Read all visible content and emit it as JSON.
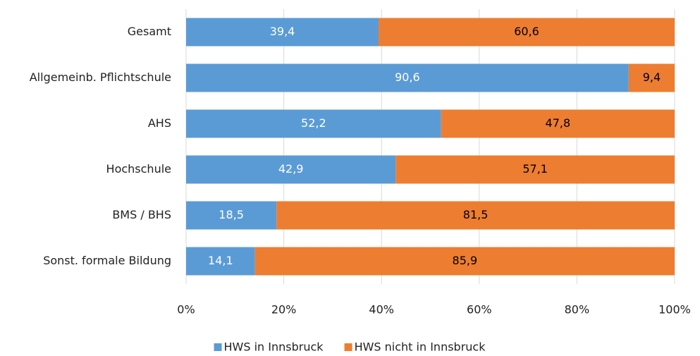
{
  "chart_data": {
    "type": "bar",
    "orientation": "horizontal",
    "stacked": true,
    "categories": [
      "Gesamt",
      "Allgemeinb. Pflichtschule",
      "AHS",
      "Hochschule",
      "BMS / BHS",
      "Sonst. formale Bildung"
    ],
    "series": [
      {
        "name": "HWS in Innsbruck",
        "color": "#5b9bd5",
        "label_color": "#ffffff",
        "values": [
          39.4,
          90.6,
          52.2,
          42.9,
          18.5,
          14.1
        ],
        "value_labels": [
          "39,4",
          "90,6",
          "52,2",
          "42,9",
          "18,5",
          "14,1"
        ]
      },
      {
        "name": "HWS nicht in Innsbruck",
        "color": "#ed7d31",
        "label_color": "#000000",
        "values": [
          60.6,
          9.4,
          47.8,
          57.1,
          81.5,
          85.9
        ],
        "value_labels": [
          "60,6",
          "9,4",
          "47,8",
          "57,1",
          "81,5",
          "85,9"
        ]
      }
    ],
    "xlim": [
      0,
      100
    ],
    "xticks": [
      {
        "value": 0,
        "label": "0%"
      },
      {
        "value": 20,
        "label": "20%"
      },
      {
        "value": 40,
        "label": "40%"
      },
      {
        "value": 60,
        "label": "60%"
      },
      {
        "value": 80,
        "label": "80%"
      },
      {
        "value": 100,
        "label": "100%"
      }
    ],
    "grid": true,
    "legend": "bottom"
  }
}
